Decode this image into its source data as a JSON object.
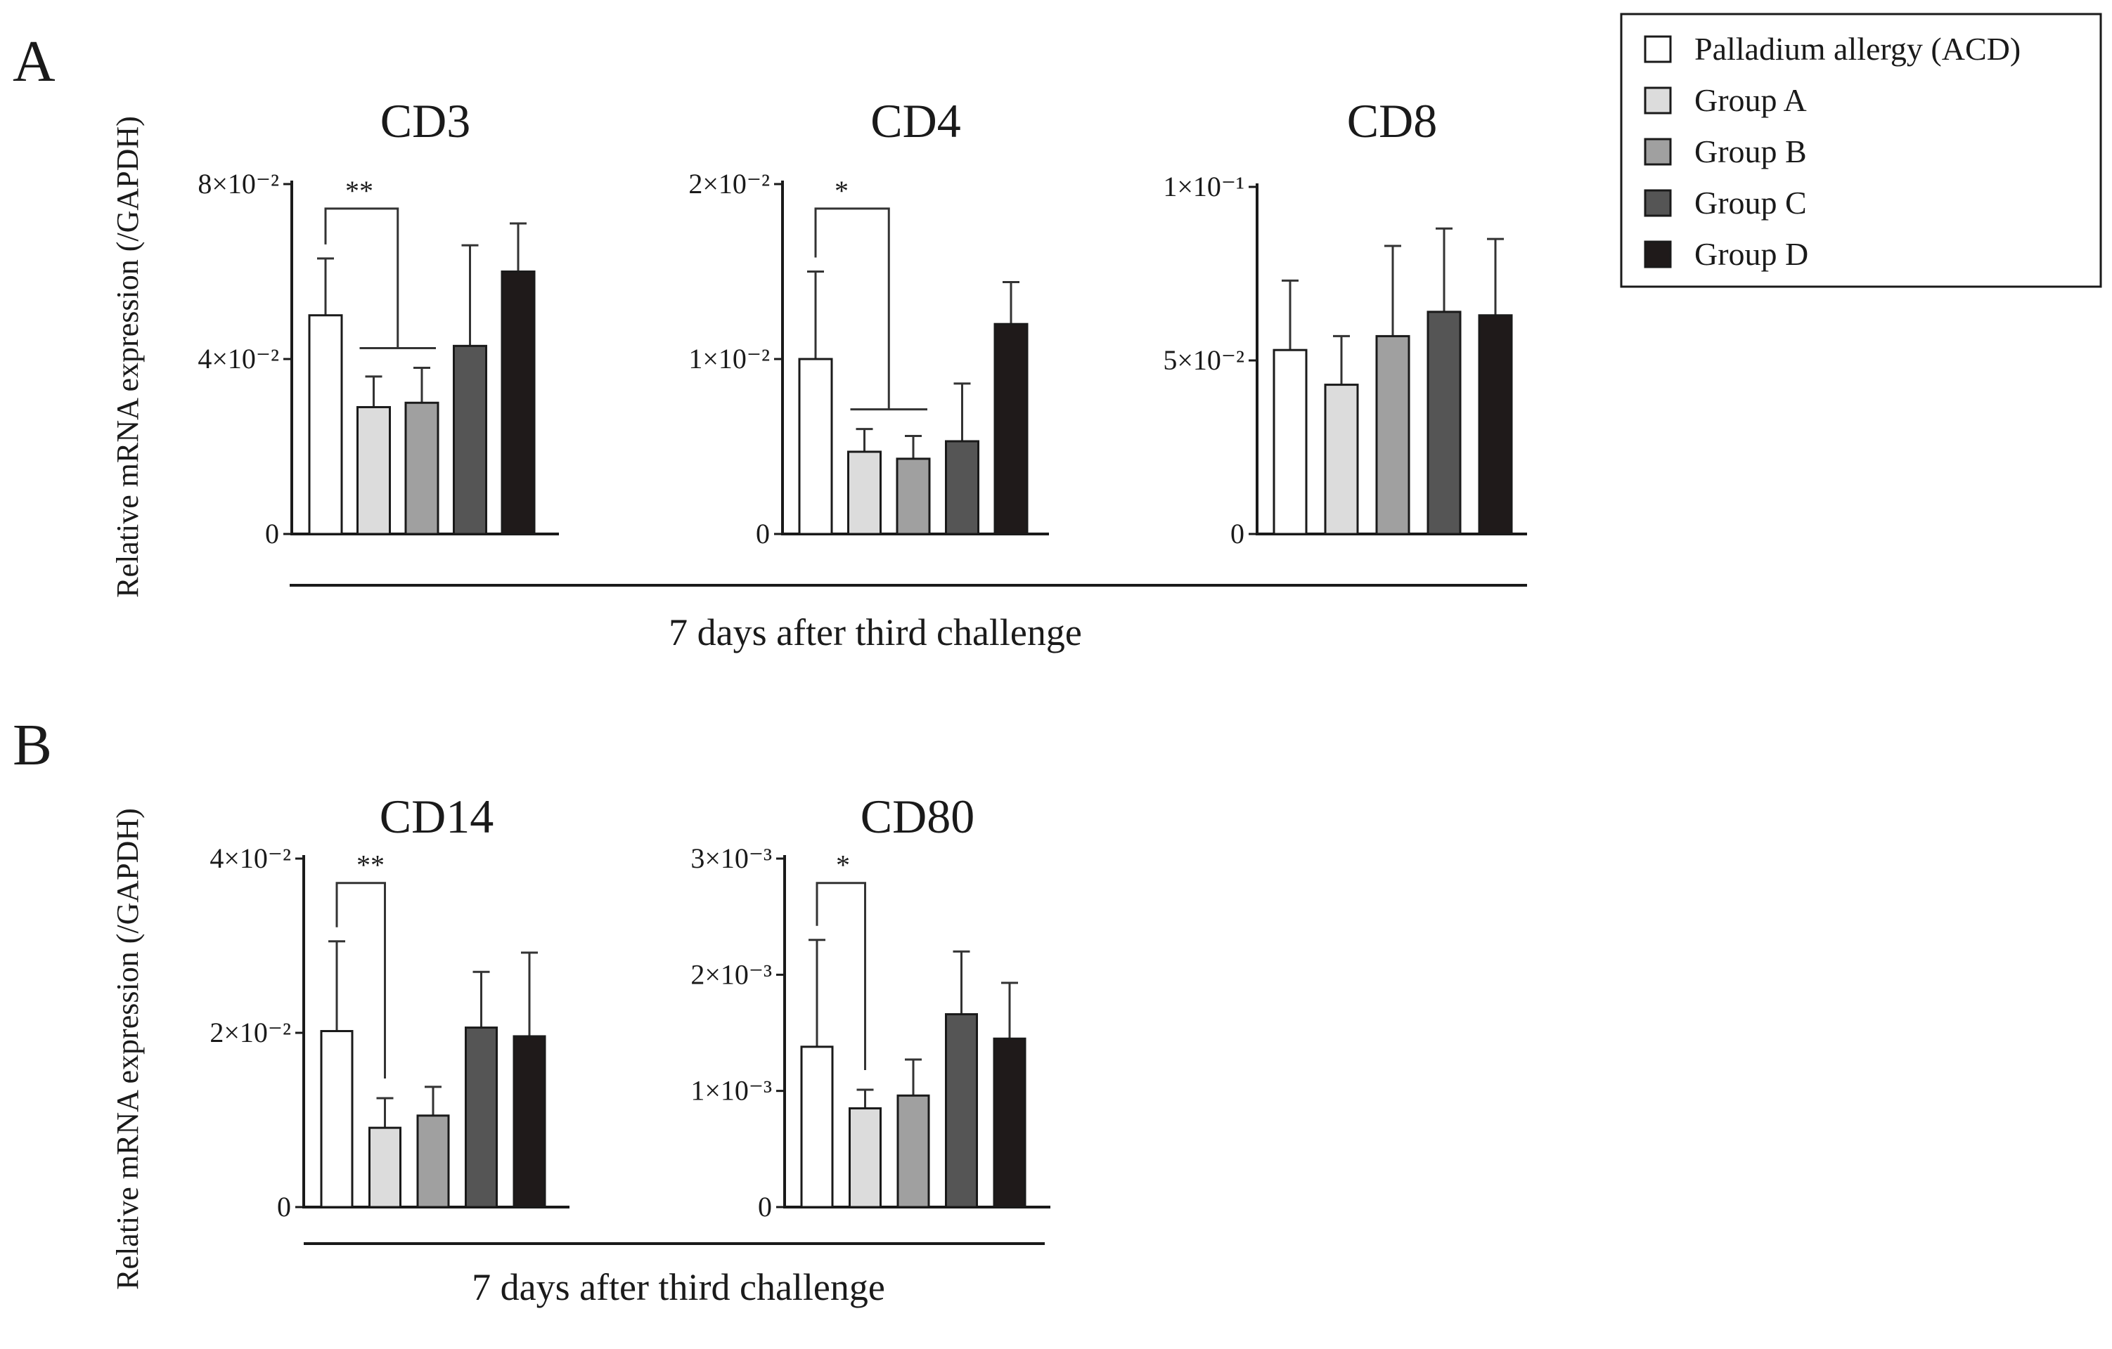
{
  "figure": {
    "panels": [
      {
        "label": "A",
        "ylabel": "Relative mRNA expression (/GAPDH)",
        "xlabel": "7 days after third challenge"
      },
      {
        "label": "B",
        "ylabel": "Relative mRNA expression (/GAPDH)",
        "xlabel": "7 days after third challenge"
      }
    ]
  },
  "legend": {
    "items": [
      {
        "label": "Palladium allergy (ACD)",
        "color": "#ffffff"
      },
      {
        "label": "Group A",
        "color": "#dcdcdc"
      },
      {
        "label": "Group B",
        "color": "#a0a0a0"
      },
      {
        "label": "Group C",
        "color": "#555555"
      },
      {
        "label": "Group D",
        "color": "#1f1a1a"
      }
    ]
  },
  "chart_data": [
    {
      "type": "bar",
      "panel": "A",
      "title": "CD3",
      "categories": [
        "Palladium allergy (ACD)",
        "Group A",
        "Group B",
        "Group C",
        "Group D"
      ],
      "values": [
        0.05,
        0.029,
        0.03,
        0.043,
        0.06
      ],
      "errors": [
        0.013,
        0.007,
        0.008,
        0.023,
        0.011
      ],
      "ylim": [
        0,
        0.08
      ],
      "ticks": [
        {
          "v": 0,
          "label": "0"
        },
        {
          "v": 0.04,
          "label": "4×10⁻²"
        },
        {
          "v": 0.08,
          "label": "8×10⁻²"
        }
      ],
      "significance": [
        {
          "from": 0,
          "to": [
            1,
            2
          ],
          "label": "**"
        }
      ]
    },
    {
      "type": "bar",
      "panel": "A",
      "title": "CD4",
      "categories": [
        "Palladium allergy (ACD)",
        "Group A",
        "Group B",
        "Group C",
        "Group D"
      ],
      "values": [
        0.01,
        0.0047,
        0.0043,
        0.0053,
        0.012
      ],
      "errors": [
        0.005,
        0.0013,
        0.0013,
        0.0033,
        0.0024
      ],
      "ylim": [
        0,
        0.02
      ],
      "ticks": [
        {
          "v": 0,
          "label": "0"
        },
        {
          "v": 0.01,
          "label": "1×10⁻²"
        },
        {
          "v": 0.02,
          "label": "2×10⁻²"
        }
      ],
      "significance": [
        {
          "from": 0,
          "to": [
            1,
            2
          ],
          "label": "*"
        }
      ]
    },
    {
      "type": "bar",
      "panel": "A",
      "title": "CD8",
      "categories": [
        "Palladium allergy (ACD)",
        "Group A",
        "Group B",
        "Group C",
        "Group D"
      ],
      "values": [
        0.053,
        0.043,
        0.057,
        0.064,
        0.063
      ],
      "errors": [
        0.02,
        0.014,
        0.026,
        0.024,
        0.022
      ],
      "ylim": [
        0,
        0.1
      ],
      "ticks": [
        {
          "v": 0,
          "label": "0"
        },
        {
          "v": 0.05,
          "label": "5×10⁻²"
        },
        {
          "v": 0.1,
          "label": "1×10⁻¹"
        }
      ],
      "significance": []
    },
    {
      "type": "bar",
      "panel": "B",
      "title": "CD14",
      "categories": [
        "Palladium allergy (ACD)",
        "Group A",
        "Group B",
        "Group C",
        "Group D"
      ],
      "values": [
        0.0202,
        0.0091,
        0.0105,
        0.0206,
        0.0196
      ],
      "errors": [
        0.0103,
        0.0034,
        0.0033,
        0.0064,
        0.0096
      ],
      "ylim": [
        0,
        0.04
      ],
      "ticks": [
        {
          "v": 0,
          "label": "0"
        },
        {
          "v": 0.02,
          "label": "2×10⁻²"
        },
        {
          "v": 0.04,
          "label": "4×10⁻²"
        }
      ],
      "significance": [
        {
          "from": 0,
          "to": [
            1
          ],
          "label": "**"
        }
      ]
    },
    {
      "type": "bar",
      "panel": "B",
      "title": "CD80",
      "categories": [
        "Palladium allergy (ACD)",
        "Group A",
        "Group B",
        "Group C",
        "Group D"
      ],
      "values": [
        0.00138,
        0.00085,
        0.00096,
        0.00166,
        0.00145
      ],
      "errors": [
        0.00092,
        0.00016,
        0.00031,
        0.00054,
        0.00048
      ],
      "ylim": [
        0,
        0.003
      ],
      "ticks": [
        {
          "v": 0,
          "label": "0"
        },
        {
          "v": 0.001,
          "label": "1×10⁻³"
        },
        {
          "v": 0.002,
          "label": "2×10⁻³"
        },
        {
          "v": 0.003,
          "label": "3×10⁻³"
        }
      ],
      "significance": [
        {
          "from": 0,
          "to": [
            1
          ],
          "label": "*"
        }
      ]
    }
  ]
}
